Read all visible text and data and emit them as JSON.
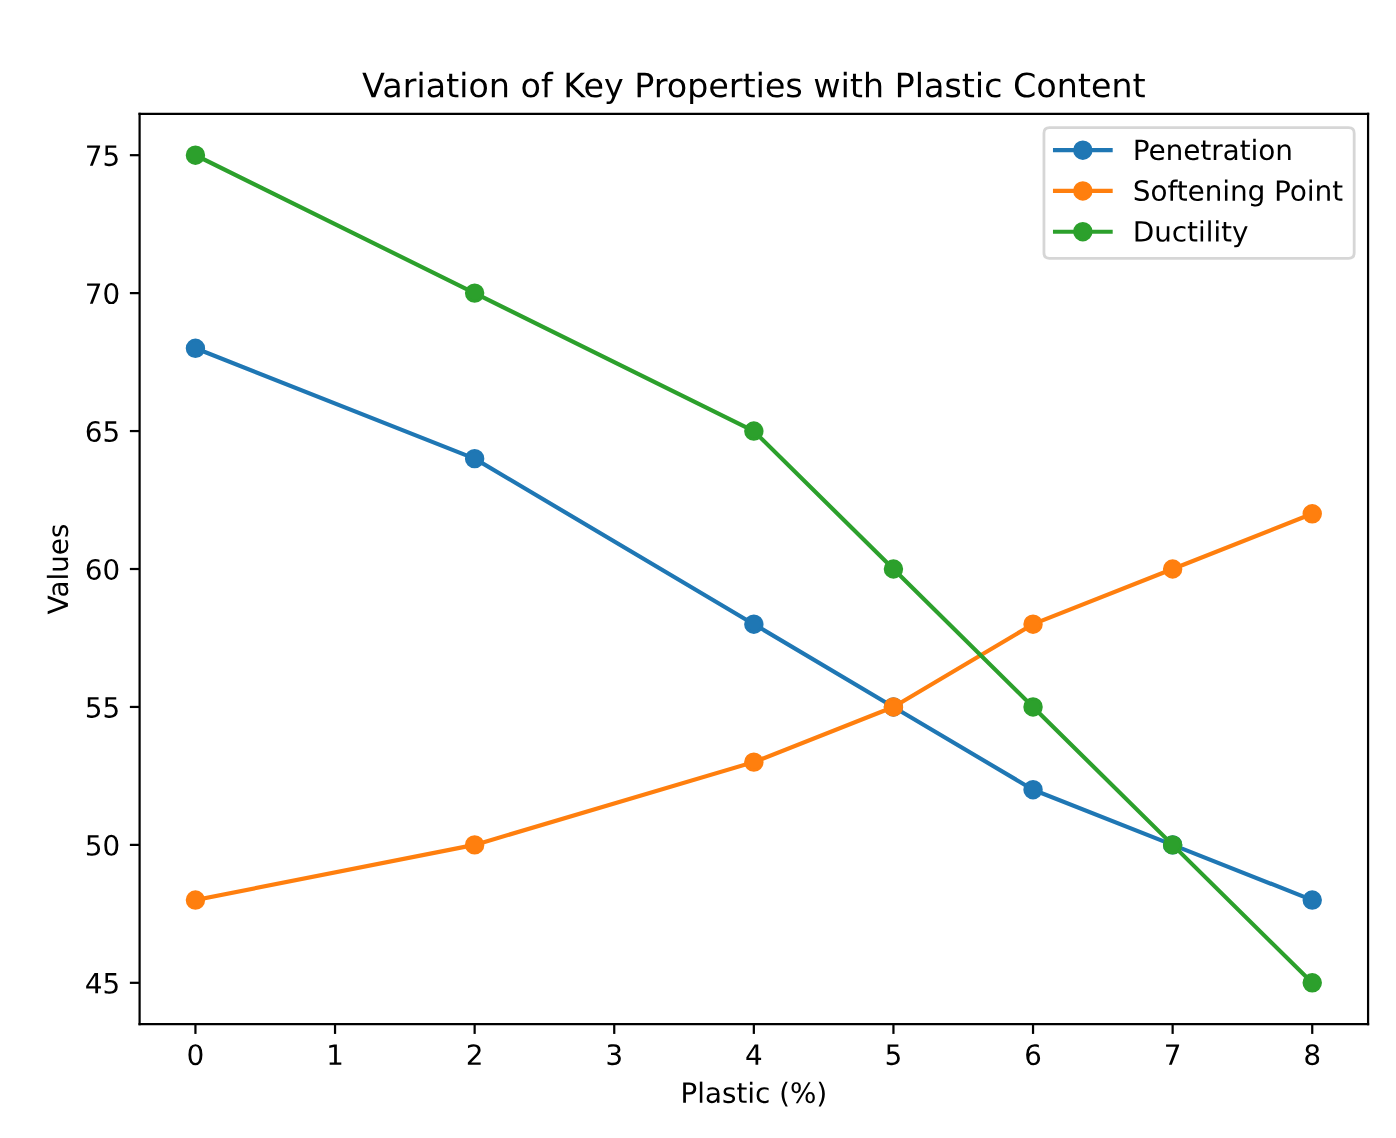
{
  "chart_data": {
    "type": "line",
    "title": "Variation of Key Properties with Plastic Content",
    "xlabel": "Plastic (%)",
    "ylabel": "Values",
    "x": [
      0,
      2,
      4,
      5,
      6,
      7,
      8
    ],
    "series": [
      {
        "name": "Penetration",
        "color": "#1f77b4",
        "values": [
          68,
          64,
          58,
          55,
          52,
          50,
          48
        ]
      },
      {
        "name": "Softening Point",
        "color": "#ff7f0e",
        "values": [
          48,
          50,
          53,
          55,
          58,
          60,
          62
        ]
      },
      {
        "name": "Ductility",
        "color": "#2ca02c",
        "values": [
          75,
          70,
          65,
          60,
          55,
          50,
          45
        ]
      }
    ],
    "xlim": [
      -0.4,
      8.4
    ],
    "xticks": [
      0,
      1,
      2,
      3,
      4,
      5,
      6,
      7,
      8
    ],
    "ylim": [
      43.5,
      76.5
    ],
    "yticks": [
      45,
      50,
      55,
      60,
      65,
      70,
      75
    ],
    "marker": "circle",
    "line_style": "solid",
    "legend": "top right",
    "grid": false
  }
}
